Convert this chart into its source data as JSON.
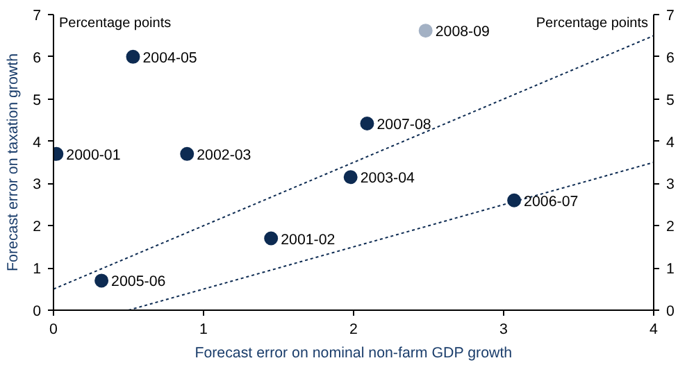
{
  "chart_data": {
    "type": "scatter",
    "xlabel": "Forecast error on nominal non-farm GDP growth",
    "ylabel": "Forecast error on taxation growth",
    "xlim": [
      0,
      4
    ],
    "xticks": [
      0,
      1,
      2,
      3,
      4
    ],
    "ylim": [
      0,
      7
    ],
    "yticks": [
      0,
      1,
      2,
      3,
      4,
      5,
      6,
      7
    ],
    "y2lim": [
      0,
      7
    ],
    "y2ticks": [
      0,
      1,
      2,
      3,
      4,
      5,
      6,
      7
    ],
    "grid": false,
    "series": [
      {
        "marker": "circle",
        "x": [
          0.02,
          1.45,
          0.89,
          1.98,
          0.53,
          0.32,
          3.07,
          2.09,
          2.48
        ],
        "values": [
          3.7,
          1.7,
          3.7,
          3.15,
          6.0,
          0.7,
          2.6,
          4.42,
          6.62
        ],
        "colors": [
          "#0d2b52",
          "#0d2b52",
          "#0d2b52",
          "#0d2b52",
          "#0d2b52",
          "#0d2b52",
          "#0d2b52",
          "#0d2b52",
          "#a3b1c4"
        ]
      },
      {
        "type": "line",
        "x": [
          0,
          4
        ],
        "values": [
          0.5,
          6.5
        ],
        "color": "#0d2b52",
        "line_style": "dashed"
      },
      {
        "type": "line",
        "x": [
          0.5,
          4
        ],
        "values": [
          0,
          3.5
        ],
        "color": "#0d2b52",
        "line_style": "dashed"
      }
    ],
    "annotations": [
      "Percentage points",
      "Percentage points",
      {
        "text": "2000-01",
        "x": 0.02,
        "y": 3.7
      },
      {
        "text": "2001-02",
        "x": 1.45,
        "y": 1.7
      },
      {
        "text": "2002-03",
        "x": 0.89,
        "y": 3.7
      },
      {
        "text": "2003-04",
        "x": 1.98,
        "y": 3.15
      },
      {
        "text": "2004-05",
        "x": 0.53,
        "y": 6.0
      },
      {
        "text": "2005-06",
        "x": 0.32,
        "y": 0.7
      },
      {
        "text": "2006-07",
        "x": 3.07,
        "y": 2.6
      },
      {
        "text": "2007-08",
        "x": 2.09,
        "y": 4.42
      },
      {
        "text": "2008-09",
        "x": 2.48,
        "y": 6.62
      }
    ]
  }
}
